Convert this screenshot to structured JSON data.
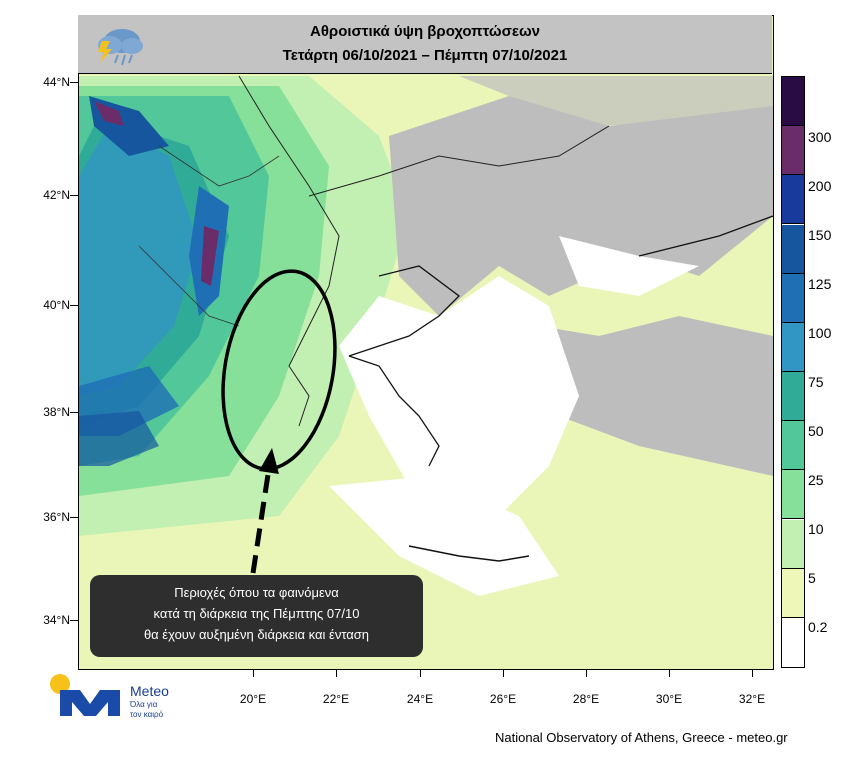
{
  "title": {
    "line1": "Αθροιστικά ύψη βροχοπτώσεων",
    "line2": "Τετάρτη 06/10/2021 – Πέμπτη 07/10/2021"
  },
  "latitude_labels": [
    "44°N",
    "42°N",
    "40°N",
    "38°N",
    "36°N",
    "34°N"
  ],
  "longitude_labels": [
    "20°E",
    "22°E",
    "24°E",
    "26°E",
    "28°E",
    "30°E",
    "32°E"
  ],
  "colorbar": {
    "colors": [
      "#ffffff",
      "#eef6b8",
      "#c2efb2",
      "#86e09a",
      "#52c89a",
      "#2fab97",
      "#3296c4",
      "#1f6fb5",
      "#15569f",
      "#183a9c",
      "#6a2d6a",
      "#2a0c45"
    ],
    "labels": [
      "0.2",
      "5",
      "10",
      "25",
      "50",
      "75",
      "100",
      "125",
      "150",
      "200",
      "300"
    ]
  },
  "callout": {
    "line1": "Περιοχές όπου τα φαινόμενα",
    "line2": "κατά τη διάρκεια της Πέμπτης 07/10",
    "line3": "θα έχουν αυξημένη διάρκεια και ένταση"
  },
  "logo": {
    "name": "Meteo",
    "tagline1": "Όλα για",
    "tagline2": "τον καιρό"
  },
  "footer": "National Observatory of Athens, Greece - meteo.gr",
  "map_icons": [
    "rain-cloud-lightning-icon"
  ]
}
